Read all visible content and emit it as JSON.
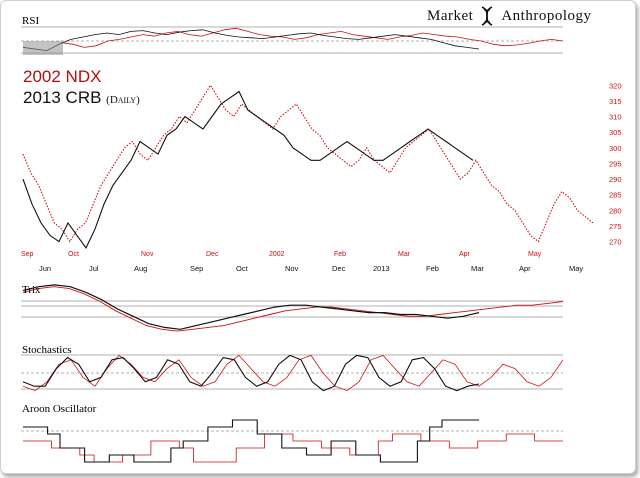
{
  "brand": {
    "left": "Market",
    "right": "Anthropology"
  },
  "title": {
    "line1": "2002 NDX",
    "line2": "2013 CRB",
    "line2_note": "(Daily)"
  },
  "colors": {
    "ndx": "#cc1111",
    "crb": "#111111",
    "crb_light": "#555555",
    "grid": "#999999"
  },
  "chart_data": [
    {
      "type": "line",
      "panel": "RSI",
      "title": "RSI",
      "series": [
        {
          "values": [
            48,
            46,
            42,
            44,
            50,
            52,
            55,
            58,
            56,
            60,
            62,
            58,
            56,
            60,
            64,
            66,
            62,
            58,
            56,
            55,
            52,
            54,
            58,
            60,
            62,
            58,
            56,
            54,
            52,
            55,
            57,
            60,
            58,
            56,
            55,
            52,
            50,
            46,
            44,
            45,
            47,
            50,
            52,
            50
          ]
        },
        {
          "values": [
            42,
            40,
            38,
            46,
            52,
            55,
            58,
            60,
            58,
            62,
            63,
            60,
            58,
            61,
            63,
            64,
            60,
            57,
            55,
            54,
            53,
            55,
            57,
            59,
            60,
            57,
            55,
            53,
            52,
            54,
            56,
            58,
            56,
            54,
            52,
            48,
            44,
            42,
            40
          ]
        }
      ]
    },
    {
      "type": "line",
      "panel": "Price",
      "y_ticks": [
        320,
        315,
        310,
        305,
        300,
        295,
        290,
        285,
        280,
        275,
        270
      ],
      "ylim": [
        267,
        322
      ],
      "x_axis_top": [
        "Sep",
        "Oct",
        "Nov",
        "Dec",
        "2002",
        "Feb",
        "Mar",
        "Apr",
        "May"
      ],
      "x_axis_bottom": [
        "Jun",
        "Jul",
        "Aug",
        "Sep",
        "Oct",
        "Nov",
        "Dec",
        "2013",
        "Feb",
        "Mar",
        "Apr",
        "May"
      ],
      "series": [
        {
          "values": [
            298,
            292,
            288,
            282,
            276,
            274,
            270,
            274,
            276,
            282,
            288,
            292,
            296,
            300,
            302,
            298,
            296,
            300,
            304,
            306,
            310,
            308,
            312,
            316,
            320,
            316,
            312,
            310,
            314,
            312,
            310,
            308,
            306,
            310,
            312,
            314,
            310,
            306,
            304,
            300,
            298,
            296,
            294,
            296,
            300,
            296,
            294,
            292,
            296,
            300,
            302,
            304,
            306,
            302,
            298,
            294,
            290,
            292,
            296,
            292,
            288,
            286,
            282,
            280,
            276,
            272,
            270,
            276,
            282,
            286,
            284,
            280,
            278,
            276
          ]
        },
        {
          "values": [
            290,
            282,
            276,
            272,
            270,
            276,
            272,
            268,
            274,
            282,
            288,
            292,
            296,
            302,
            300,
            298,
            304,
            306,
            310,
            308,
            306,
            310,
            314,
            316,
            318,
            312,
            310,
            308,
            306,
            304,
            300,
            298,
            296,
            296,
            298,
            300,
            302,
            300,
            298,
            296,
            296,
            298,
            300,
            302,
            304,
            306,
            304,
            302,
            300,
            298,
            296
          ]
        }
      ]
    },
    {
      "type": "line",
      "panel": "Trix",
      "title": "Trix",
      "series": [
        {
          "values": [
            -1.0,
            -1.2,
            -1.3,
            -1.2,
            -0.9,
            -0.5,
            0.0,
            0.4,
            0.8,
            1.0,
            1.1,
            1.0,
            0.9,
            0.8,
            0.6,
            0.4,
            0.2,
            0.0,
            -0.1,
            -0.2,
            -0.2,
            -0.1,
            0.0,
            0.1,
            0.2,
            0.3,
            0.3,
            0.2,
            0.1,
            0.0,
            -0.1,
            -0.2,
            -0.3,
            -0.3,
            -0.4,
            -0.5
          ]
        },
        {
          "values": [
            -1.1,
            -1.3,
            -1.4,
            -1.3,
            -1.0,
            -0.6,
            -0.1,
            0.3,
            0.7,
            0.9,
            1.0,
            0.8,
            0.6,
            0.4,
            0.2,
            0.0,
            -0.2,
            -0.3,
            -0.3,
            -0.2,
            -0.1,
            0.0,
            0.1,
            0.1,
            0.2,
            0.2,
            0.3,
            0.4,
            0.3,
            0.1
          ]
        }
      ]
    },
    {
      "type": "line",
      "panel": "Stochastics",
      "title": "Stochastics",
      "series": [
        {
          "values": [
            20,
            10,
            30,
            70,
            80,
            40,
            20,
            60,
            90,
            70,
            40,
            30,
            60,
            80,
            40,
            20,
            30,
            70,
            90,
            60,
            30,
            20,
            40,
            80,
            90,
            50,
            20,
            10,
            30,
            80,
            90,
            60,
            30,
            20,
            50,
            80,
            70,
            30,
            20,
            40,
            70,
            60,
            30,
            20,
            40,
            80
          ]
        },
        {
          "values": [
            30,
            20,
            20,
            60,
            85,
            70,
            30,
            40,
            80,
            85,
            60,
            30,
            40,
            80,
            70,
            30,
            20,
            50,
            85,
            80,
            40,
            20,
            30,
            70,
            90,
            80,
            30,
            10,
            20,
            70,
            90,
            85,
            40,
            20,
            30,
            80,
            85,
            60,
            20,
            10,
            20,
            25
          ]
        }
      ]
    },
    {
      "type": "line",
      "panel": "Aroon",
      "title": "Aroon Oscillator",
      "series": [
        {
          "values": [
            20,
            20,
            40,
            40,
            60,
            80,
            80,
            60,
            60,
            20,
            20,
            40,
            80,
            80,
            80,
            40,
            40,
            0,
            0,
            20,
            20,
            40,
            40,
            60,
            60,
            20,
            0,
            0,
            20,
            20,
            40,
            40,
            20,
            20,
            0,
            0,
            20,
            20
          ]
        },
        {
          "values": [
            -20,
            -20,
            0,
            40,
            40,
            80,
            80,
            60,
            60,
            80,
            80,
            80,
            40,
            20,
            20,
            -20,
            -20,
            -40,
            -40,
            0,
            0,
            40,
            40,
            60,
            60,
            20,
            20,
            60,
            60,
            80,
            80,
            80,
            20,
            -20,
            -40,
            -40,
            -40
          ]
        }
      ]
    }
  ]
}
